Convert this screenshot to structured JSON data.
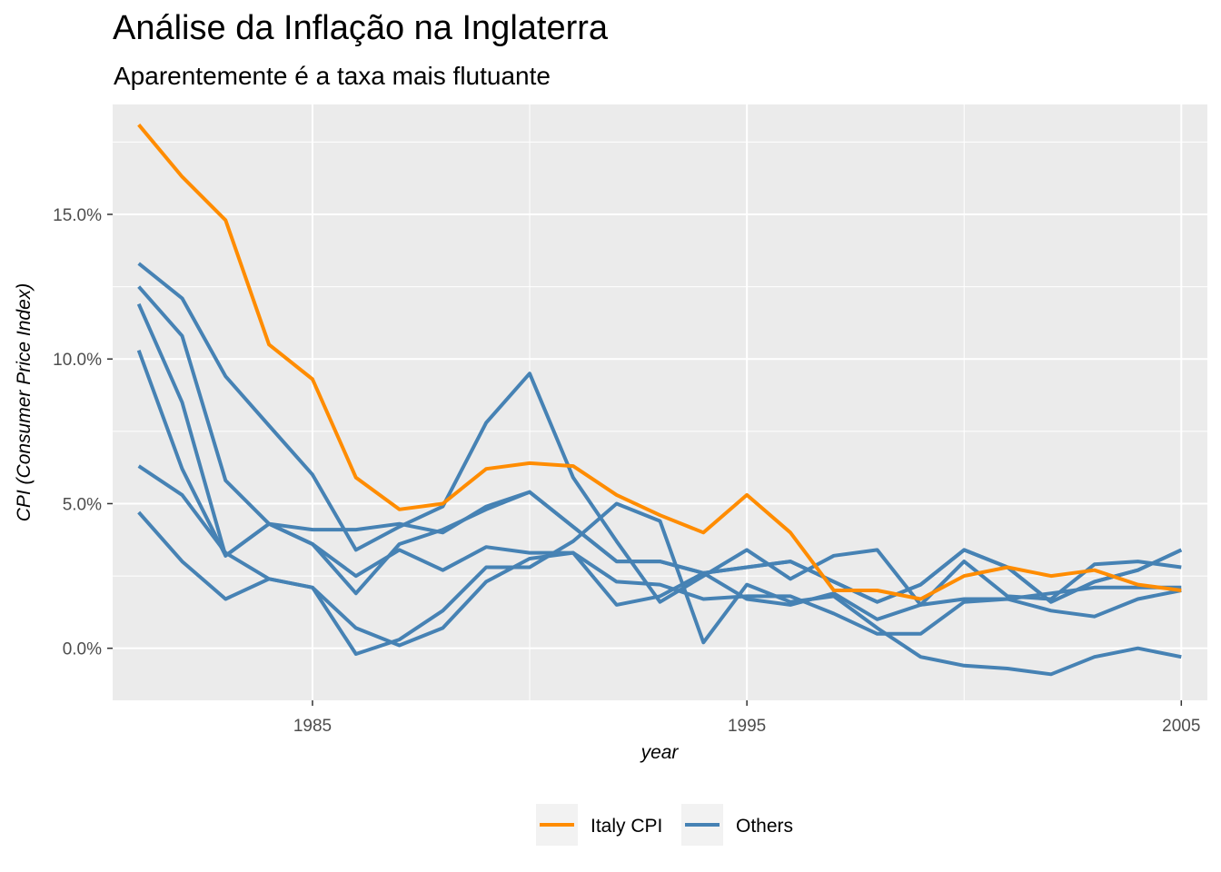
{
  "chart_data": {
    "type": "line",
    "title": "Análise da Inflação na Inglaterra",
    "subtitle": "Aparentemente é a taxa mais flutuante",
    "xlabel": "year",
    "ylabel": "CPI (Consumer Price Index)",
    "xlim": [
      1980.4,
      2005.6
    ],
    "ylim": [
      -1.8,
      18.8
    ],
    "x_ticks": [
      1985,
      1995,
      2005
    ],
    "x_tick_labels": [
      "1985",
      "1995",
      "2005"
    ],
    "y_ticks": [
      0,
      5,
      10,
      15
    ],
    "y_tick_labels": [
      "0.0%",
      "5.0%",
      "10.0%",
      "15.0%"
    ],
    "grid": true,
    "legend_position": "bottom",
    "legend": [
      {
        "label": "Italy CPI",
        "color": "#FF8C00"
      },
      {
        "label": "Others",
        "color": "#4682B4"
      }
    ],
    "x": [
      1981,
      1982,
      1983,
      1984,
      1985,
      1986,
      1987,
      1988,
      1989,
      1990,
      1991,
      1992,
      1993,
      1994,
      1995,
      1996,
      1997,
      1998,
      1999,
      2000,
      2001,
      2002,
      2003,
      2004,
      2005
    ],
    "series": [
      {
        "group": "Others",
        "color": "#4682B4",
        "values": [
          12.5,
          10.8,
          5.8,
          4.3,
          4.1,
          4.1,
          4.3,
          4.0,
          4.9,
          5.4,
          4.2,
          3.0,
          3.0,
          2.6,
          2.8,
          3.0,
          2.3,
          1.6,
          2.2,
          3.4,
          2.8,
          1.6,
          2.3,
          2.7,
          3.4
        ]
      },
      {
        "group": "Others",
        "color": "#4682B4",
        "values": [
          13.3,
          12.1,
          9.4,
          7.7,
          6.0,
          3.4,
          4.2,
          4.9,
          7.8,
          9.5,
          5.9,
          3.7,
          1.6,
          2.5,
          3.4,
          2.4,
          3.2,
          3.4,
          1.5,
          3.0,
          1.8,
          1.7,
          2.9,
          3.0,
          2.8
        ]
      },
      {
        "group": "Others",
        "color": "#4682B4",
        "values": [
          11.9,
          8.5,
          3.2,
          4.3,
          3.6,
          1.9,
          3.6,
          4.1,
          4.8,
          5.4,
          4.2,
          3.0,
          3.0,
          2.6,
          2.8,
          3.0,
          2.3,
          1.6,
          2.2,
          3.4,
          2.8,
          1.6,
          2.3,
          2.7,
          3.4
        ]
      },
      {
        "group": "Others",
        "color": "#4682B4",
        "values": [
          10.3,
          6.2,
          3.2,
          4.3,
          3.6,
          2.5,
          3.4,
          2.7,
          3.5,
          3.3,
          3.3,
          1.5,
          1.8,
          2.6,
          1.7,
          1.5,
          1.9,
          1.0,
          1.5,
          1.7,
          1.7,
          1.9,
          2.1,
          2.1,
          2.1
        ]
      },
      {
        "group": "Others",
        "color": "#4682B4",
        "values": [
          6.3,
          5.3,
          3.3,
          2.4,
          2.1,
          0.7,
          0.1,
          0.7,
          2.3,
          3.1,
          3.3,
          2.3,
          2.2,
          1.7,
          1.8,
          1.8,
          1.2,
          0.5,
          0.5,
          1.6,
          1.7,
          1.3,
          1.1,
          1.7,
          2.0
        ]
      },
      {
        "group": "Others",
        "color": "#4682B4",
        "values": [
          4.7,
          3.0,
          1.7,
          2.4,
          2.1,
          -0.2,
          0.3,
          1.3,
          2.8,
          2.8,
          3.7,
          5.0,
          4.4,
          0.2,
          2.2,
          1.6,
          1.8,
          0.7,
          -0.3,
          -0.6,
          -0.7,
          -0.9,
          -0.3,
          0.0,
          -0.3
        ]
      },
      {
        "group": "Italy CPI",
        "color": "#FF8C00",
        "values": [
          18.1,
          16.3,
          14.8,
          10.5,
          9.3,
          5.9,
          4.8,
          5.0,
          6.2,
          6.4,
          6.3,
          5.3,
          4.6,
          4.0,
          5.3,
          4.0,
          2.0,
          2.0,
          1.7,
          2.5,
          2.8,
          2.5,
          2.7,
          2.2,
          2.0
        ]
      }
    ]
  }
}
